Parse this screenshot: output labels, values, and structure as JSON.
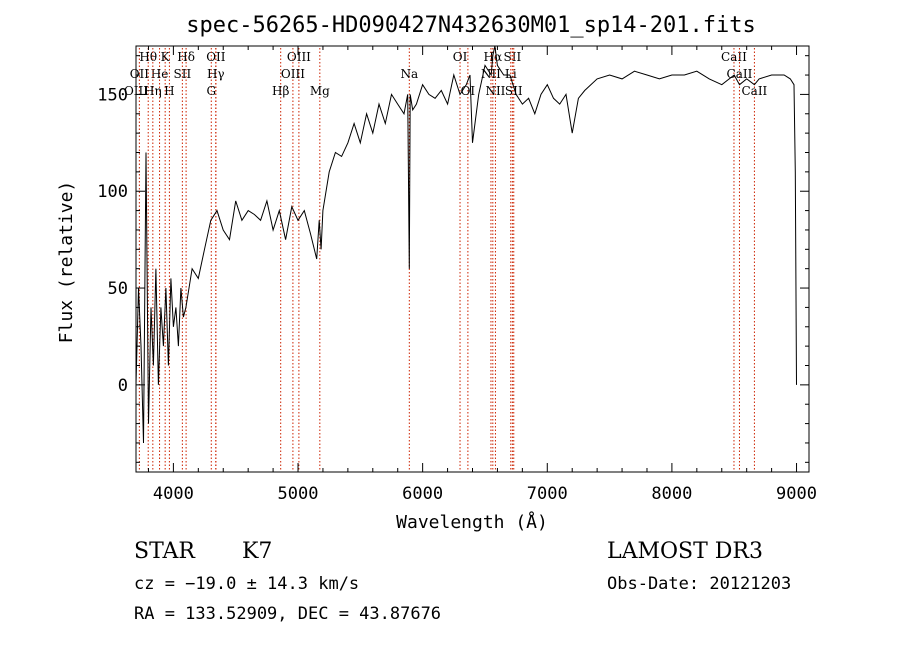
{
  "chart_data": {
    "type": "line",
    "title": "spec-56265-HD090427N432630M01_sp14-201.fits",
    "xlabel": "Wavelength (Å)",
    "ylabel": "Flux (relative)",
    "xlim": [
      3700,
      9100
    ],
    "ylim": [
      -45,
      175
    ],
    "x_ticks": [
      4000,
      5000,
      6000,
      7000,
      8000,
      9000
    ],
    "y_ticks": [
      0,
      50,
      100,
      150
    ],
    "grid": false,
    "series": [
      {
        "x": [
          3700,
          3720,
          3740,
          3760,
          3780,
          3800,
          3820,
          3840,
          3860,
          3880,
          3900,
          3920,
          3940,
          3960,
          3980,
          4000,
          4020,
          4040,
          4060,
          4080,
          4100,
          4150,
          4200,
          4250,
          4300,
          4350,
          4400,
          4450,
          4500,
          4550,
          4600,
          4650,
          4700,
          4750,
          4800,
          4850,
          4900,
          4950,
          5000,
          5050,
          5100,
          5150,
          5170,
          5185,
          5200,
          5250,
          5300,
          5350,
          5400,
          5450,
          5500,
          5550,
          5600,
          5650,
          5700,
          5750,
          5800,
          5850,
          5880,
          5893,
          5900,
          5920,
          5950,
          6000,
          6050,
          6100,
          6150,
          6200,
          6250,
          6300,
          6350,
          6380,
          6400,
          6450,
          6500,
          6550,
          6563,
          6580,
          6600,
          6650,
          6700,
          6750,
          6800,
          6850,
          6900,
          6950,
          7000,
          7050,
          7100,
          7150,
          7200,
          7250,
          7300,
          7400,
          7500,
          7600,
          7700,
          7800,
          7900,
          8000,
          8100,
          8200,
          8300,
          8400,
          8500,
          8542,
          8600,
          8662,
          8700,
          8800,
          8900,
          8950,
          8980,
          8990,
          9000
        ],
        "values": [
          0,
          50,
          20,
          -30,
          120,
          -20,
          40,
          10,
          60,
          0,
          40,
          20,
          50,
          10,
          55,
          30,
          40,
          20,
          50,
          35,
          40,
          60,
          55,
          70,
          85,
          90,
          80,
          75,
          95,
          85,
          90,
          88,
          85,
          95,
          80,
          90,
          75,
          92,
          85,
          90,
          78,
          65,
          85,
          70,
          90,
          110,
          120,
          118,
          125,
          135,
          125,
          140,
          130,
          145,
          135,
          150,
          145,
          140,
          150,
          60,
          150,
          142,
          145,
          155,
          150,
          148,
          152,
          145,
          160,
          150,
          155,
          160,
          125,
          150,
          165,
          160,
          170,
          175,
          165,
          160,
          160,
          150,
          145,
          148,
          140,
          150,
          155,
          148,
          145,
          150,
          130,
          148,
          152,
          158,
          160,
          158,
          162,
          160,
          158,
          160,
          160,
          162,
          158,
          155,
          160,
          155,
          158,
          155,
          158,
          160,
          160,
          158,
          155,
          110,
          0
        ]
      }
    ],
    "line_markers": [
      {
        "label": "Hθ",
        "x": 3798,
        "row": 0
      },
      {
        "label": "K",
        "x": 3934,
        "row": 0
      },
      {
        "label": "Hδ",
        "x": 4102,
        "row": 0
      },
      {
        "label": "OII",
        "x": 4341,
        "row": 0
      },
      {
        "label": "OIII",
        "x": 5007,
        "row": 0
      },
      {
        "label": "OI",
        "x": 6300,
        "row": 0
      },
      {
        "label": "Hα",
        "x": 6563,
        "row": 0
      },
      {
        "label": "SII",
        "x": 6720,
        "row": 0
      },
      {
        "label": "CaII",
        "x": 8498,
        "row": 0
      },
      {
        "label": "OII",
        "x": 3727,
        "row": 1
      },
      {
        "label": "He",
        "x": 3889,
        "row": 1
      },
      {
        "label": "SII",
        "x": 4072,
        "row": 1
      },
      {
        "label": "Hγ",
        "x": 4340,
        "row": 1
      },
      {
        "label": "OIII",
        "x": 4959,
        "row": 1
      },
      {
        "label": "Na",
        "x": 5893,
        "row": 1
      },
      {
        "label": "NII",
        "x": 6548,
        "row": 1
      },
      {
        "label": "Li",
        "x": 6707,
        "row": 1
      },
      {
        "label": "CaII",
        "x": 8542,
        "row": 1
      },
      {
        "label": "OIII",
        "x": 3700,
        "row": 2
      },
      {
        "label": "Hη",
        "x": 3835,
        "row": 2
      },
      {
        "label": "H",
        "x": 3968,
        "row": 2
      },
      {
        "label": "G",
        "x": 4304,
        "row": 2
      },
      {
        "label": "Hβ",
        "x": 4861,
        "row": 2
      },
      {
        "label": "Mg",
        "x": 5175,
        "row": 2
      },
      {
        "label": "OI",
        "x": 6363,
        "row": 2
      },
      {
        "label": "NII",
        "x": 6584,
        "row": 2
      },
      {
        "label": "SII",
        "x": 6731,
        "row": 2
      },
      {
        "label": "CaII",
        "x": 8662,
        "row": 2
      }
    ]
  },
  "footer": {
    "object_class": "STAR",
    "subclass": "K7",
    "cz": "cz = −19.0 ± 14.3 km/s",
    "coords": "RA = 133.52909, DEC =  43.87676",
    "survey": "LAMOST DR3",
    "obs_date": "Obs-Date: 20121203"
  },
  "colors": {
    "marker_line": "#cc2200",
    "spectrum": "#000000",
    "axes": "#000000"
  }
}
